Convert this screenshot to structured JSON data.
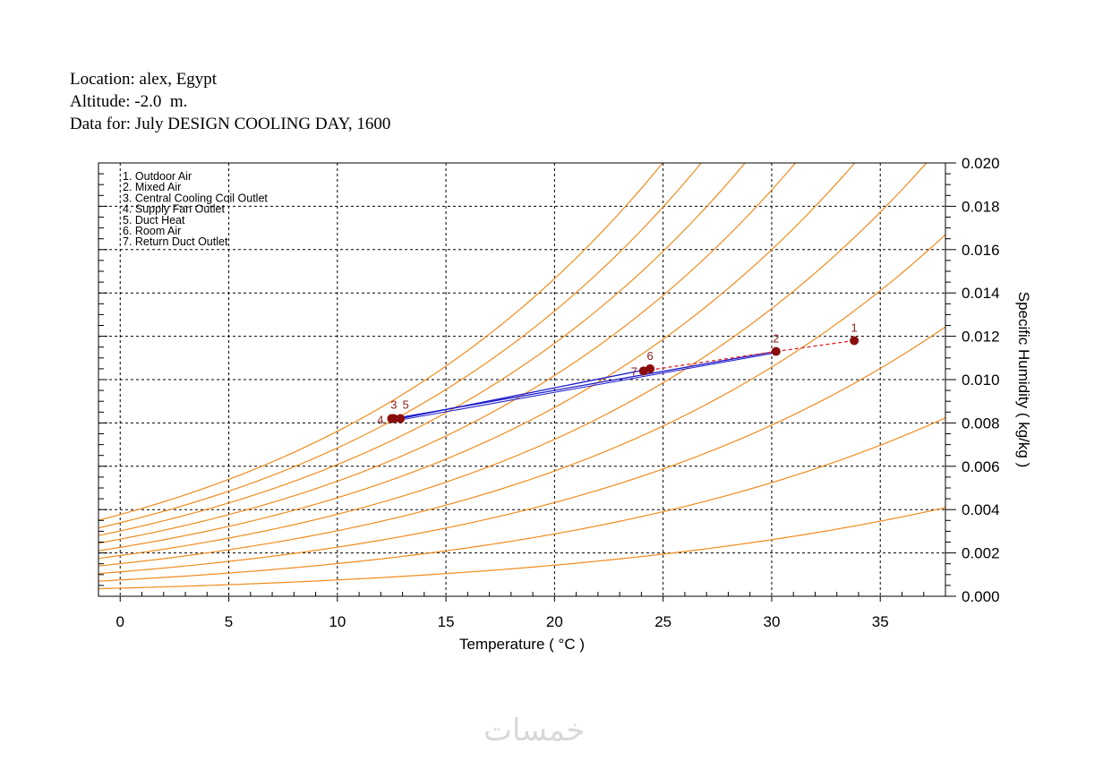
{
  "header": {
    "line1": "Location: alex, Egypt",
    "line2": "Altitude: -2.0  m.",
    "line3": "Data for: July DESIGN COOLING DAY, 1600"
  },
  "watermark": "خمسات",
  "chart_data": {
    "type": "scatter",
    "title": "",
    "xlabel": "Temperature ( °C )",
    "ylabel": "Specific Humidity ( kg/kg )",
    "xlim": [
      -1,
      38
    ],
    "ylim": [
      0,
      0.02
    ],
    "xticks": [
      "0",
      "5",
      "10",
      "15",
      "20",
      "25",
      "30",
      "35"
    ],
    "yticks": [
      "0.000",
      "0.002",
      "0.004",
      "0.006",
      "0.008",
      "0.010",
      "0.012",
      "0.014",
      "0.016",
      "0.018",
      "0.020"
    ],
    "grid": true,
    "legend_position": "top-left",
    "legend": [
      "1. Outdoor Air",
      "2. Mixed Air",
      "3. Central Cooling Coil Outlet",
      "4. Supply Fan Outlet",
      "5. Duct Heat",
      "6. Room Air",
      "7. Return Duct Outlet"
    ],
    "rh_curve_fractions": [
      0.1,
      0.2,
      0.3,
      0.4,
      0.5,
      0.6,
      0.7,
      0.8,
      0.9,
      1.0
    ],
    "points": [
      {
        "label": "1",
        "x": 33.8,
        "y": 0.0118
      },
      {
        "label": "2",
        "x": 30.2,
        "y": 0.0113
      },
      {
        "label": "3",
        "x": 12.6,
        "y": 0.0082
      },
      {
        "label": "4",
        "x": 12.5,
        "y": 0.0082
      },
      {
        "label": "5",
        "x": 12.9,
        "y": 0.0082
      },
      {
        "label": "6",
        "x": 24.4,
        "y": 0.0105
      },
      {
        "label": "7",
        "x": 24.1,
        "y": 0.0104
      }
    ],
    "process_lines": [
      {
        "from": "1",
        "to": "2",
        "style": "dashed",
        "color": "#e02020"
      },
      {
        "from": "2",
        "to": "3",
        "style": "solid",
        "color": "#1a1acc"
      },
      {
        "from": "5",
        "to": "6",
        "style": "solid",
        "color": "#1a1acc"
      },
      {
        "from": "7",
        "to": "2",
        "style": "dashed",
        "color": "#e02020"
      }
    ],
    "colors": {
      "rh_curves": "#f08c1e",
      "points": "#8b0e0e",
      "grid": "#000000"
    }
  }
}
